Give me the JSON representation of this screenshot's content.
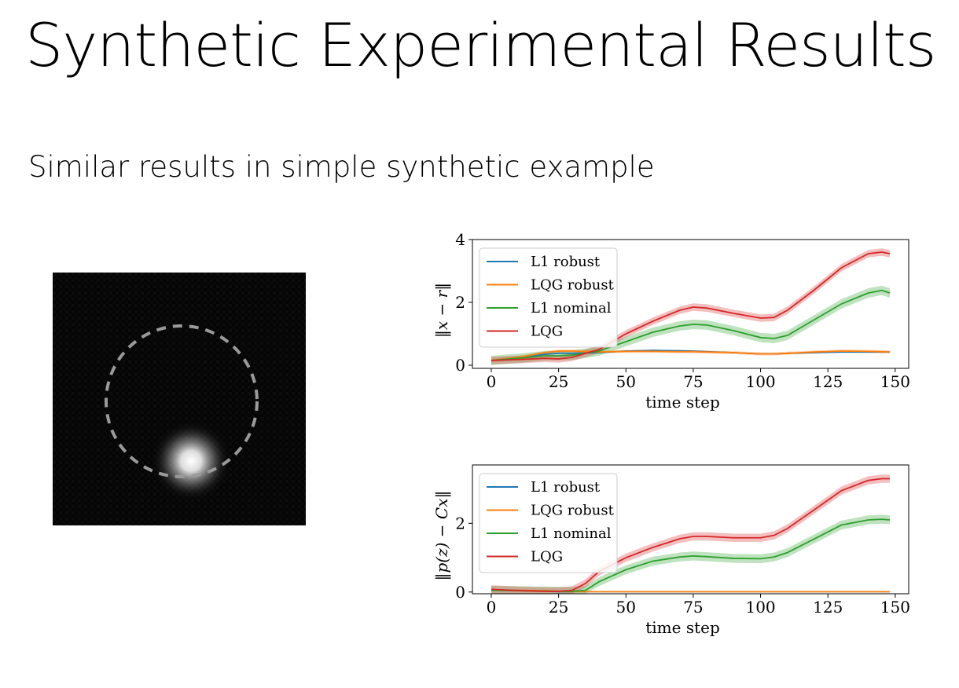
{
  "slide": {
    "title": "Synthetic Experimental Results",
    "subtitle": "Similar results in simple synthetic example"
  },
  "image": {
    "description_icon": "synthetic-camera-frame",
    "background": "#050505",
    "circle_color": "#9a9a9a",
    "blob_color": "#ffffff"
  },
  "colors": {
    "L1 robust": "#1f77b4",
    "LQG robust": "#ff7f0e",
    "L1 nominal": "#2ca02c",
    "LQG": "#d62728"
  },
  "chart_data": [
    {
      "type": "line",
      "xlabel": "time step",
      "ylabel": "‖x − r‖",
      "xlim": [
        -7,
        155
      ],
      "ylim": [
        -0.1,
        4.0
      ],
      "xticks": [
        0,
        25,
        50,
        75,
        100,
        125,
        150
      ],
      "yticks": [
        0,
        2,
        4
      ],
      "grid": false,
      "legend": "top-left",
      "x": [
        0,
        10,
        20,
        25,
        30,
        40,
        50,
        60,
        70,
        75,
        80,
        90,
        100,
        105,
        110,
        120,
        130,
        140,
        145,
        148
      ],
      "series": [
        {
          "name": "L1 robust",
          "band": 0.02,
          "values": [
            0.15,
            0.25,
            0.35,
            0.38,
            0.38,
            0.4,
            0.45,
            0.47,
            0.46,
            0.45,
            0.43,
            0.4,
            0.36,
            0.36,
            0.38,
            0.4,
            0.42,
            0.42,
            0.42,
            0.42
          ]
        },
        {
          "name": "LQG robust",
          "band": 0.05,
          "values": [
            0.15,
            0.25,
            0.4,
            0.45,
            0.45,
            0.42,
            0.44,
            0.44,
            0.43,
            0.43,
            0.42,
            0.4,
            0.36,
            0.36,
            0.38,
            0.42,
            0.45,
            0.44,
            0.43,
            0.42
          ]
        },
        {
          "name": "L1 nominal",
          "band": 0.15,
          "values": [
            0.15,
            0.22,
            0.3,
            0.3,
            0.32,
            0.45,
            0.75,
            1.05,
            1.25,
            1.3,
            1.28,
            1.1,
            0.88,
            0.85,
            0.95,
            1.45,
            1.95,
            2.3,
            2.38,
            2.3
          ]
        },
        {
          "name": "LQG",
          "band": 0.12,
          "values": [
            0.15,
            0.18,
            0.22,
            0.2,
            0.25,
            0.5,
            1.0,
            1.4,
            1.75,
            1.85,
            1.82,
            1.65,
            1.5,
            1.52,
            1.75,
            2.4,
            3.1,
            3.55,
            3.6,
            3.55
          ]
        }
      ]
    },
    {
      "type": "line",
      "xlabel": "time step",
      "ylabel": "‖p(z) − Cx‖",
      "xlim": [
        -7,
        155
      ],
      "ylim": [
        -0.05,
        3.7
      ],
      "xticks": [
        0,
        25,
        50,
        75,
        100,
        125,
        150
      ],
      "yticks": [
        0,
        2
      ],
      "grid": false,
      "legend": "top-left",
      "x": [
        0,
        10,
        20,
        25,
        30,
        35,
        40,
        50,
        60,
        70,
        75,
        80,
        90,
        100,
        105,
        110,
        120,
        130,
        140,
        145,
        148
      ],
      "series": [
        {
          "name": "L1 robust",
          "band": 0.01,
          "values": [
            0.05,
            0.05,
            0.03,
            0.01,
            0.01,
            0.01,
            0.01,
            0.01,
            0.01,
            0.01,
            0.01,
            0.01,
            0.01,
            0.01,
            0.01,
            0.01,
            0.01,
            0.01,
            0.01,
            0.01,
            0.01
          ]
        },
        {
          "name": "LQG robust",
          "band": 0.02,
          "values": [
            0.05,
            0.05,
            0.04,
            0.02,
            0.01,
            0.01,
            0.01,
            0.01,
            0.01,
            0.01,
            0.01,
            0.01,
            0.01,
            0.01,
            0.01,
            0.01,
            0.01,
            0.01,
            0.01,
            0.01,
            0.01
          ]
        },
        {
          "name": "L1 nominal",
          "band": 0.13,
          "values": [
            0.05,
            0.04,
            0.03,
            0.02,
            0.02,
            0.05,
            0.3,
            0.65,
            0.9,
            1.02,
            1.05,
            1.03,
            0.98,
            0.97,
            1.02,
            1.15,
            1.55,
            1.95,
            2.1,
            2.12,
            2.1
          ]
        },
        {
          "name": "LQG",
          "band": 0.12,
          "values": [
            0.08,
            0.04,
            0.02,
            0.02,
            0.05,
            0.25,
            0.6,
            1.0,
            1.3,
            1.55,
            1.62,
            1.62,
            1.58,
            1.58,
            1.65,
            1.85,
            2.4,
            2.95,
            3.25,
            3.3,
            3.3
          ]
        }
      ]
    }
  ]
}
